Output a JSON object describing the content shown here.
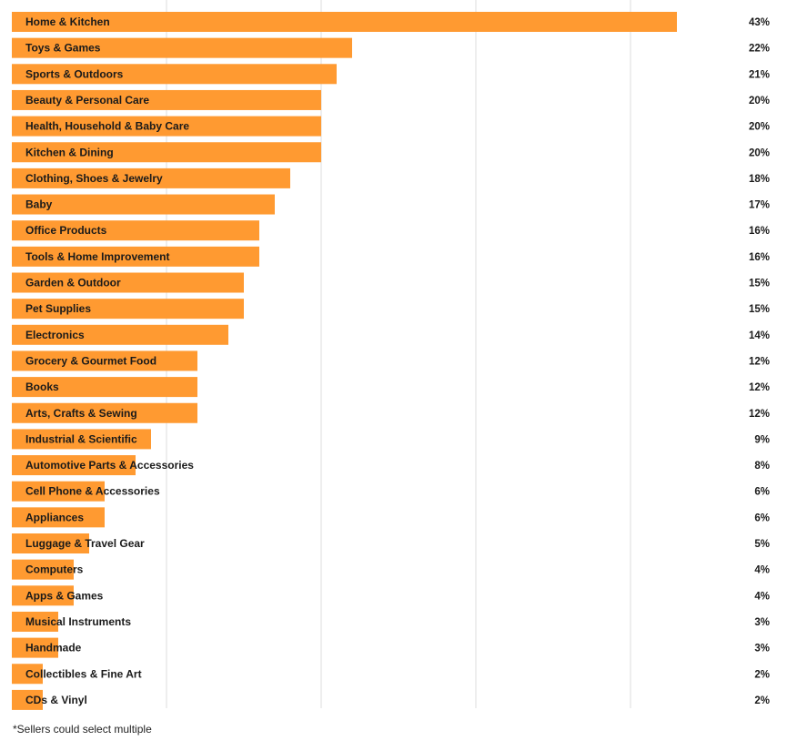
{
  "chart_data": {
    "type": "bar",
    "orientation": "horizontal",
    "categories": [
      "Home & Kitchen",
      "Toys & Games",
      "Sports & Outdoors",
      "Beauty & Personal Care",
      "Health, Household & Baby Care",
      "Kitchen & Dining",
      "Clothing, Shoes & Jewelry",
      "Baby",
      "Office Products",
      "Tools & Home Improvement",
      "Garden & Outdoor",
      "Pet Supplies",
      "Electronics",
      "Grocery & Gourmet Food",
      "Books",
      "Arts, Crafts & Sewing",
      "Industrial & Scientific",
      "Automotive Parts & Accessories",
      "Cell Phone & Accessories",
      "Appliances",
      "Luggage & Travel Gear",
      "Computers",
      "Apps & Games",
      "Musical Instruments",
      "Handmade",
      "Collectibles & Fine Art",
      "CDs & Vinyl"
    ],
    "values": [
      43,
      22,
      21,
      20,
      20,
      20,
      18,
      17,
      16,
      16,
      15,
      15,
      14,
      12,
      12,
      12,
      9,
      8,
      6,
      6,
      5,
      4,
      4,
      3,
      3,
      2,
      2
    ],
    "value_labels": [
      "43%",
      "22%",
      "21%",
      "20%",
      "20%",
      "20%",
      "18%",
      "17%",
      "16%",
      "16%",
      "15%",
      "15%",
      "14%",
      "12%",
      "12%",
      "12%",
      "9%",
      "8%",
      "6%",
      "6%",
      "5%",
      "4%",
      "4%",
      "3%",
      "3%",
      "2%",
      "2%"
    ],
    "unit": "%",
    "xlim": [
      0,
      50
    ],
    "grid": true,
    "bar_color": "#ff9a31",
    "grid_color": "#dcdcdc",
    "footnote": "*Sellers could select multiple"
  }
}
